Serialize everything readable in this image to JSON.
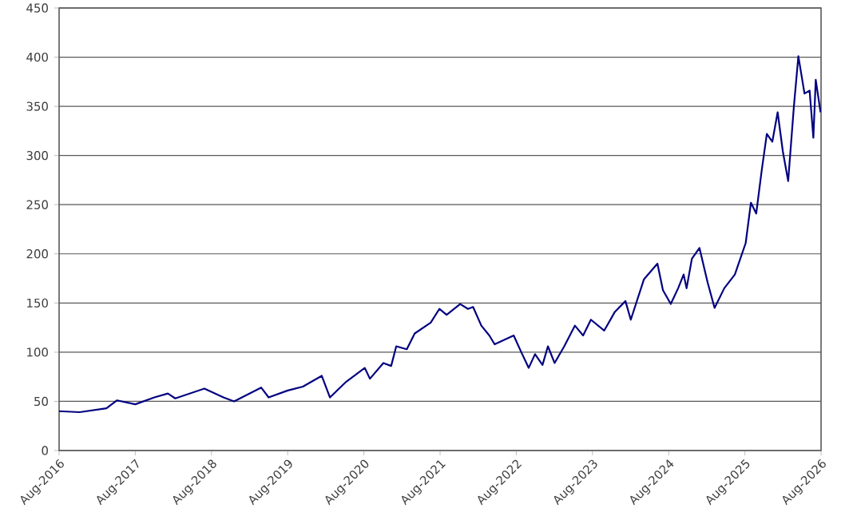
{
  "chart_data": {
    "type": "line",
    "x": [
      "2016-08-01",
      "2016-11-08",
      "2017-03-15",
      "2017-05-05",
      "2017-08-01",
      "2017-11-01",
      "2018-01-05",
      "2018-02-10",
      "2018-06-28",
      "2018-09-28",
      "2018-11-18",
      "2019-03-26",
      "2019-05-01",
      "2019-08-01",
      "2019-10-13",
      "2020-01-12",
      "2020-02-21",
      "2020-05-08",
      "2020-08-05",
      "2020-08-30",
      "2020-11-03",
      "2020-12-10",
      "2021-01-04",
      "2021-02-24",
      "2021-04-01",
      "2021-06-17",
      "2021-07-28",
      "2021-09-02",
      "2021-11-06",
      "2021-12-13",
      "2022-01-07",
      "2022-02-16",
      "2022-03-24",
      "2022-04-19",
      "2022-07-19",
      "2022-08-25",
      "2022-09-30",
      "2022-10-30",
      "2022-12-05",
      "2022-12-31",
      "2023-02-02",
      "2023-03-18",
      "2023-05-08",
      "2023-06-17",
      "2023-07-24",
      "2023-09-27",
      "2023-11-17",
      "2024-01-07",
      "2024-02-02",
      "2024-04-04",
      "2024-06-08",
      "2024-07-04",
      "2024-08-11",
      "2024-09-16",
      "2024-10-12",
      "2024-10-26",
      "2024-11-21",
      "2024-12-27",
      "2025-02-05",
      "2025-03-08",
      "2025-04-24",
      "2025-06-14",
      "2025-08-05",
      "2025-08-30",
      "2025-09-25",
      "2025-10-21",
      "2025-11-15",
      "2025-12-11",
      "2026-01-06",
      "2026-01-31",
      "2026-02-26",
      "2026-03-23",
      "2026-04-14",
      "2026-05-13",
      "2026-06-07",
      "2026-06-25",
      "2026-07-06",
      "2026-07-29"
    ],
    "series": [
      {
        "color": "#000080",
        "values": [
          40,
          39,
          43,
          51,
          47,
          54,
          58,
          53,
          63,
          54,
          50,
          64,
          54,
          61,
          65,
          76,
          54,
          70,
          84,
          73,
          89,
          86,
          106,
          103,
          119,
          130,
          144,
          138,
          149,
          144,
          146,
          127,
          117,
          108,
          117,
          100,
          84,
          98,
          87,
          106,
          89,
          106,
          127,
          117,
          133,
          122,
          141,
          152,
          133,
          174,
          190,
          163,
          149,
          165,
          179,
          165,
          195,
          206,
          171,
          145,
          165,
          179,
          211,
          252,
          241,
          285,
          322,
          314,
          344,
          304,
          274,
          350,
          401,
          363,
          366,
          318,
          377,
          344
        ]
      }
    ],
    "xlim": [
      "2016-08",
      "2026-08"
    ],
    "xticks": [
      {
        "value": "2016-08",
        "label": "Aug-2016"
      },
      {
        "value": "2017-08",
        "label": "Aug-2017"
      },
      {
        "value": "2018-08",
        "label": "Aug-2018"
      },
      {
        "value": "2019-08",
        "label": "Aug-2019"
      },
      {
        "value": "2020-08",
        "label": "Aug-2020"
      },
      {
        "value": "2021-08",
        "label": "Aug-2021"
      },
      {
        "value": "2022-08",
        "label": "Aug-2022"
      },
      {
        "value": "2023-08",
        "label": "Aug-2023"
      },
      {
        "value": "2024-08",
        "label": "Aug-2024"
      },
      {
        "value": "2025-08",
        "label": "Aug-2025"
      },
      {
        "value": "2026-08",
        "label": "Aug-2026"
      }
    ],
    "ylim": [
      0,
      450
    ],
    "yticks": [
      0,
      50,
      100,
      150,
      200,
      250,
      300,
      350,
      400,
      450
    ],
    "grid": "y",
    "marker": "none",
    "line_style": "solid"
  }
}
